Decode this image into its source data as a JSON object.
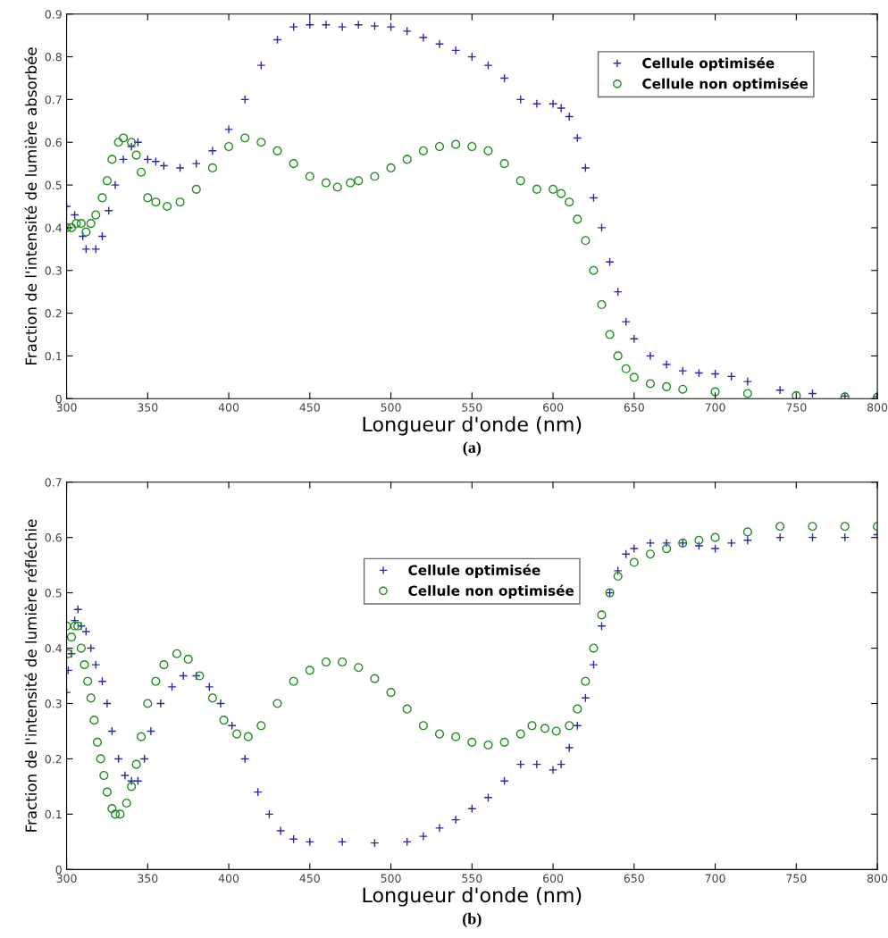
{
  "chart_data": [
    {
      "type": "scatter",
      "title": "(a)",
      "xlabel": "Longueur d'onde (nm)",
      "ylabel": "Fraction de l'intensité de lumière absorbée",
      "xlim": [
        300,
        800
      ],
      "xticks": [
        300,
        350,
        400,
        450,
        500,
        550,
        600,
        650,
        700,
        750,
        800
      ],
      "ylim": [
        0,
        0.9
      ],
      "yticks": [
        0,
        0.1,
        0.2,
        0.3,
        0.4,
        0.5,
        0.6,
        0.7,
        0.8,
        0.9
      ],
      "grid": false,
      "legend": "top right",
      "series": [
        {
          "name": "Cellule optimisée",
          "color": "#2a2aa0",
          "marker": "cross",
          "x": [
            300,
            305,
            310,
            312,
            318,
            322,
            326,
            330,
            335,
            340,
            344,
            350,
            355,
            360,
            370,
            380,
            390,
            400,
            410,
            420,
            430,
            440,
            450,
            460,
            470,
            480,
            490,
            500,
            510,
            520,
            530,
            540,
            550,
            560,
            570,
            580,
            590,
            600,
            605,
            610,
            615,
            620,
            625,
            630,
            635,
            640,
            645,
            650,
            660,
            670,
            680,
            690,
            700,
            710,
            720,
            740,
            760,
            780,
            800
          ],
          "values": [
            0.45,
            0.43,
            0.38,
            0.35,
            0.35,
            0.38,
            0.44,
            0.5,
            0.56,
            0.59,
            0.6,
            0.56,
            0.555,
            0.545,
            0.54,
            0.55,
            0.58,
            0.63,
            0.7,
            0.78,
            0.84,
            0.87,
            0.875,
            0.875,
            0.87,
            0.875,
            0.872,
            0.87,
            0.86,
            0.845,
            0.83,
            0.815,
            0.8,
            0.78,
            0.75,
            0.7,
            0.69,
            0.69,
            0.68,
            0.66,
            0.61,
            0.54,
            0.47,
            0.4,
            0.32,
            0.25,
            0.18,
            0.14,
            0.1,
            0.08,
            0.065,
            0.06,
            0.058,
            0.052,
            0.04,
            0.02,
            0.012,
            0.006,
            0.005
          ]
        },
        {
          "name": "Cellule non optimisée",
          "color": "#228b22",
          "marker": "circle",
          "x": [
            300,
            303,
            306,
            309,
            312,
            315,
            318,
            322,
            325,
            328,
            332,
            335,
            340,
            343,
            346,
            350,
            355,
            362,
            370,
            380,
            390,
            400,
            410,
            420,
            430,
            440,
            450,
            460,
            467,
            475,
            480,
            490,
            500,
            510,
            520,
            530,
            540,
            550,
            560,
            570,
            580,
            590,
            600,
            605,
            610,
            615,
            620,
            625,
            630,
            635,
            640,
            645,
            650,
            660,
            670,
            680,
            700,
            720,
            750,
            780,
            800
          ],
          "values": [
            0.4,
            0.4,
            0.41,
            0.41,
            0.39,
            0.41,
            0.43,
            0.47,
            0.51,
            0.56,
            0.6,
            0.61,
            0.6,
            0.57,
            0.53,
            0.47,
            0.46,
            0.45,
            0.46,
            0.49,
            0.54,
            0.59,
            0.61,
            0.6,
            0.58,
            0.55,
            0.52,
            0.505,
            0.495,
            0.505,
            0.51,
            0.52,
            0.54,
            0.56,
            0.58,
            0.59,
            0.595,
            0.59,
            0.58,
            0.55,
            0.51,
            0.49,
            0.49,
            0.48,
            0.46,
            0.42,
            0.37,
            0.3,
            0.22,
            0.15,
            0.1,
            0.07,
            0.05,
            0.035,
            0.028,
            0.022,
            0.016,
            0.012,
            0.007,
            0.004,
            0.003
          ]
        }
      ]
    },
    {
      "type": "scatter",
      "title": "(b)",
      "xlabel": "Longueur d'onde (nm)",
      "ylabel": "Fraction de l'intensité de lumière réfléchie",
      "xlim": [
        300,
        800
      ],
      "xticks": [
        300,
        350,
        400,
        450,
        500,
        550,
        600,
        650,
        700,
        750,
        800
      ],
      "ylim": [
        0,
        0.7
      ],
      "yticks": [
        0,
        0.1,
        0.2,
        0.3,
        0.4,
        0.5,
        0.6,
        0.7
      ],
      "grid": false,
      "legend": "top",
      "series": [
        {
          "name": "Cellule optimisée",
          "color": "#2a2aa0",
          "marker": "cross",
          "x": [
            300,
            301,
            303,
            305,
            307,
            309,
            312,
            315,
            318,
            322,
            325,
            328,
            332,
            336,
            340,
            344,
            348,
            352,
            358,
            365,
            372,
            380,
            388,
            395,
            402,
            410,
            418,
            425,
            432,
            440,
            450,
            470,
            490,
            510,
            520,
            530,
            540,
            550,
            560,
            570,
            580,
            590,
            600,
            605,
            610,
            615,
            620,
            625,
            630,
            635,
            640,
            645,
            650,
            660,
            670,
            680,
            690,
            700,
            710,
            720,
            740,
            760,
            780,
            800
          ],
          "values": [
            0.32,
            0.36,
            0.39,
            0.45,
            0.47,
            0.44,
            0.43,
            0.4,
            0.37,
            0.34,
            0.3,
            0.25,
            0.2,
            0.17,
            0.16,
            0.16,
            0.2,
            0.25,
            0.3,
            0.33,
            0.35,
            0.35,
            0.33,
            0.3,
            0.26,
            0.2,
            0.14,
            0.1,
            0.07,
            0.055,
            0.05,
            0.05,
            0.048,
            0.05,
            0.06,
            0.075,
            0.09,
            0.11,
            0.13,
            0.16,
            0.19,
            0.19,
            0.18,
            0.19,
            0.22,
            0.26,
            0.31,
            0.37,
            0.44,
            0.5,
            0.54,
            0.57,
            0.58,
            0.59,
            0.59,
            0.59,
            0.585,
            0.58,
            0.59,
            0.595,
            0.6,
            0.6,
            0.6,
            0.605
          ]
        },
        {
          "name": "Cellule non optimisée",
          "color": "#228b22",
          "marker": "circle",
          "x": [
            300,
            301,
            303,
            305,
            307,
            309,
            311,
            313,
            315,
            317,
            319,
            321,
            323,
            325,
            328,
            330,
            333,
            337,
            340,
            343,
            346,
            350,
            355,
            360,
            368,
            375,
            382,
            390,
            397,
            405,
            412,
            420,
            430,
            440,
            450,
            460,
            470,
            480,
            490,
            500,
            510,
            520,
            530,
            540,
            550,
            560,
            570,
            580,
            587,
            595,
            602,
            610,
            615,
            620,
            625,
            630,
            635,
            640,
            650,
            660,
            670,
            680,
            690,
            700,
            720,
            740,
            760,
            780,
            800
          ],
          "values": [
            0.44,
            0.39,
            0.42,
            0.44,
            0.44,
            0.4,
            0.37,
            0.34,
            0.31,
            0.27,
            0.23,
            0.2,
            0.17,
            0.14,
            0.11,
            0.1,
            0.1,
            0.12,
            0.15,
            0.19,
            0.24,
            0.3,
            0.34,
            0.37,
            0.39,
            0.38,
            0.35,
            0.31,
            0.27,
            0.245,
            0.24,
            0.26,
            0.3,
            0.34,
            0.36,
            0.375,
            0.375,
            0.365,
            0.345,
            0.32,
            0.29,
            0.26,
            0.245,
            0.24,
            0.23,
            0.225,
            0.23,
            0.245,
            0.26,
            0.255,
            0.25,
            0.26,
            0.29,
            0.34,
            0.4,
            0.46,
            0.5,
            0.53,
            0.555,
            0.57,
            0.58,
            0.59,
            0.595,
            0.6,
            0.61,
            0.62,
            0.62,
            0.62,
            0.62
          ]
        }
      ]
    }
  ]
}
